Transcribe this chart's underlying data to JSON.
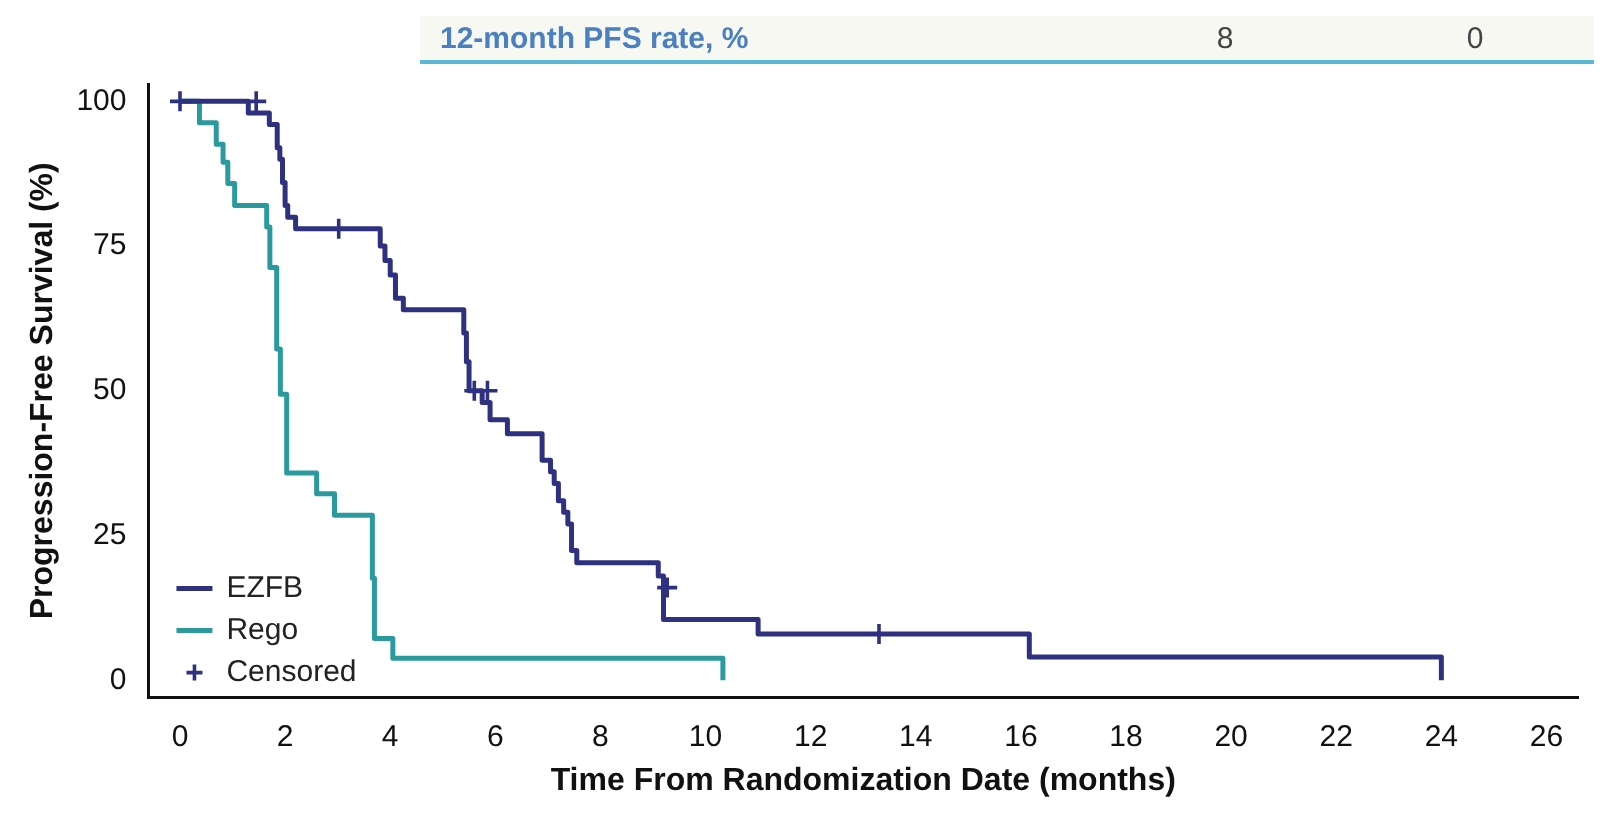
{
  "chart_data": {
    "type": "step",
    "xlabel": "Time From Randomization Date (months)",
    "ylabel": "Progression-Free Survival (%)",
    "annotations": [
      "12-month PFS rate, %",
      "8",
      "0"
    ],
    "xlim": [
      -0.6,
      26.6
    ],
    "xticks": [
      0,
      2,
      4,
      6,
      8,
      10,
      12,
      14,
      16,
      18,
      20,
      22,
      24,
      26
    ],
    "ylim": [
      -3,
      103
    ],
    "yticks": [
      0,
      25,
      50,
      75,
      100
    ],
    "legend": "bottom left",
    "grid": false,
    "series": [
      {
        "name": "EZFB",
        "color": "#2e3180",
        "x": [
          0,
          1.3,
          1.7,
          1.85,
          1.9,
          1.95,
          2.0,
          2.05,
          2.2,
          3.81,
          3.9,
          4.0,
          4.1,
          4.25,
          4.6,
          5.4,
          5.45,
          5.5,
          5.55,
          5.75,
          5.9,
          6.23,
          6.89,
          7.05,
          7.12,
          7.2,
          7.3,
          7.38,
          7.45,
          7.55,
          9.1,
          9.2,
          9.3,
          11.0,
          16.16,
          24.0
        ],
        "values": [
          100,
          98,
          96,
          92,
          90,
          86,
          82,
          80,
          78,
          75,
          72.5,
          70,
          66,
          64,
          64,
          60,
          55,
          50,
          50,
          48,
          45,
          42.6,
          38,
          36,
          34,
          31,
          29,
          27,
          22.4,
          20.3,
          18,
          10.5,
          10.5,
          8,
          4,
          0
        ]
      },
      {
        "name": "Rego",
        "color": "#2a9a9e",
        "x": [
          0,
          0.37,
          0.69,
          0.82,
          0.91,
          1.04,
          1.65,
          1.71,
          1.84,
          1.91,
          2.03,
          2.6,
          2.94,
          3.66,
          3.7,
          4.05,
          10.33
        ],
        "values": [
          100,
          96.3,
          92.6,
          89.5,
          85.8,
          82,
          78.3,
          71.3,
          57.2,
          49.4,
          35.8,
          32.2,
          28.5,
          17.6,
          7.2,
          3.8,
          0
        ]
      },
      {
        "name": "Censored",
        "type": "scatter",
        "marker": "cross",
        "color": "#2e3180",
        "x": [
          0,
          1.45,
          3.02,
          5.6,
          5.85,
          9.27,
          13.3
        ],
        "values": [
          100,
          100,
          78,
          50,
          50,
          16,
          8
        ]
      }
    ]
  }
}
